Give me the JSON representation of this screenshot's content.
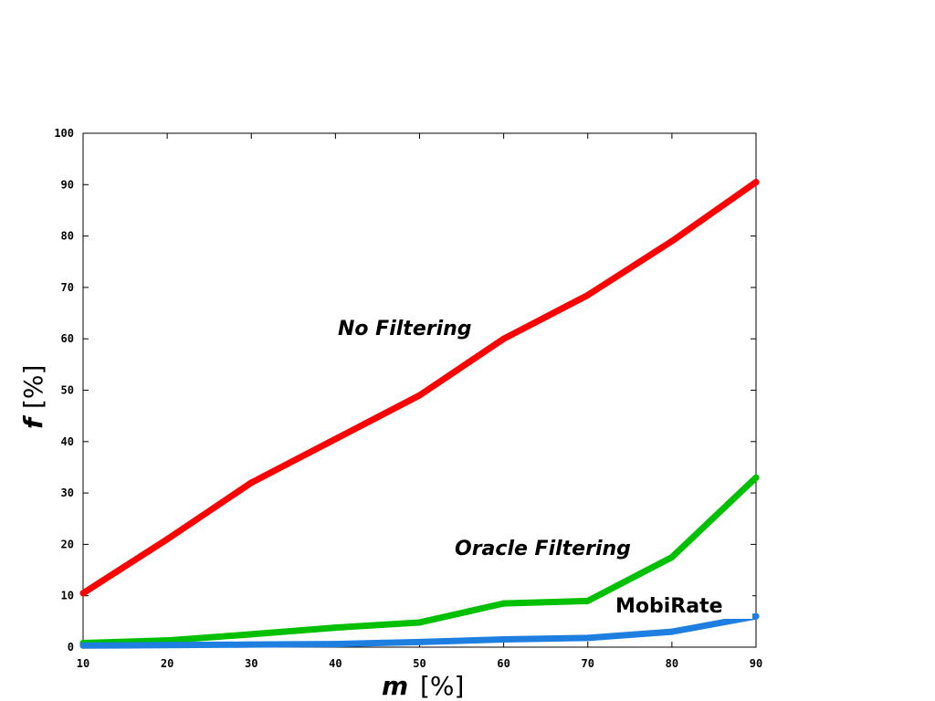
{
  "chart_data": {
    "type": "line",
    "xlabel": {
      "var": "m",
      "unit": "[%]"
    },
    "ylabel": {
      "var": "f",
      "unit": "[%]"
    },
    "xlim": [
      10,
      90
    ],
    "ylim": [
      0,
      100
    ],
    "x_ticks": [
      "10",
      "20",
      "30",
      "40",
      "50",
      "60",
      "70",
      "80",
      "90"
    ],
    "y_ticks": [
      "0",
      "10",
      "20",
      "30",
      "40",
      "50",
      "60",
      "70",
      "80",
      "90",
      "100"
    ],
    "grid": false,
    "x": [
      10,
      20,
      30,
      40,
      50,
      60,
      70,
      80,
      90
    ],
    "series": [
      {
        "name": "No Filtering",
        "color": "#ff0000",
        "values": [
          10.5,
          21,
          32,
          40.5,
          49,
          60,
          68.5,
          79,
          90.5
        ]
      },
      {
        "name": "Oracle Filtering",
        "color": "#00c000",
        "values": [
          0.8,
          1.3,
          2.5,
          3.8,
          4.8,
          8.5,
          9,
          17.5,
          33
        ]
      },
      {
        "name": "MobiRate",
        "color": "#1e7fe0",
        "values": [
          0.3,
          0.4,
          0.5,
          0.6,
          1,
          1.5,
          1.8,
          3,
          6
        ]
      }
    ],
    "annotations": [
      "No Filtering",
      "Oracle Filtering",
      "MobiRate"
    ]
  }
}
